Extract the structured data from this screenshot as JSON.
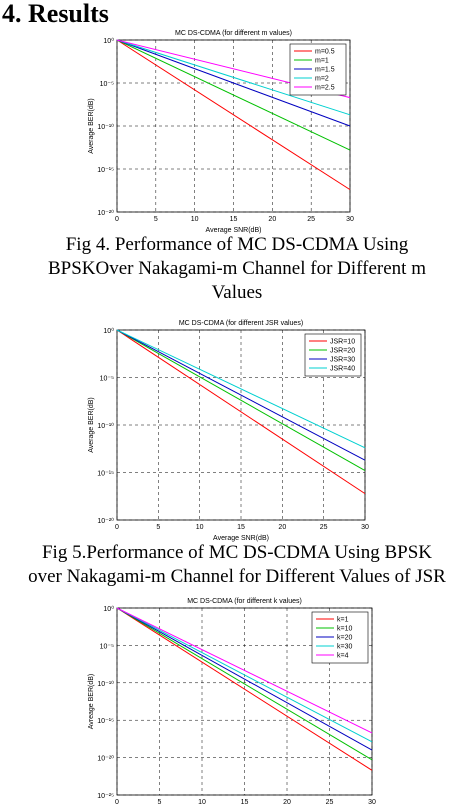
{
  "heading": "4.  Results",
  "captions": [
    [
      "Fig 4.  Performance of MC DS-CDMA Using",
      "BPSKOver Nakagami-m Channel for Different m",
      "Values"
    ],
    [
      "Fig 5.Performance of MC DS-CDMA Using BPSK",
      "over Nakagami-m Channel for Different Values of JSR"
    ]
  ],
  "chart_data": [
    {
      "type": "line",
      "title": "MC DS-CDMA (for different m values)",
      "xlabel": "Average SNR(dB)",
      "ylabel": "Average BER(dB)",
      "log_y": true,
      "grid": true,
      "legend": "upper right",
      "x": [
        0,
        30
      ],
      "xlim": [
        0,
        30
      ],
      "xticks": [
        0,
        5,
        10,
        15,
        20,
        25,
        30
      ],
      "ylim": [
        1e-20,
        1
      ],
      "yticks": [
        {
          "value": 1e-20,
          "label": "10⁻²⁰"
        },
        {
          "value": 1e-15,
          "label": "10⁻¹⁵"
        },
        {
          "value": 1e-10,
          "label": "10⁻¹⁰"
        },
        {
          "value": 1e-05,
          "label": "10⁻⁵"
        },
        {
          "value": 1,
          "label": "10⁰"
        }
      ],
      "series": [
        {
          "name": "m=0.5",
          "color": "#ff0000",
          "values": [
            1,
            4e-18
          ]
        },
        {
          "name": "m=1",
          "color": "#00c000",
          "values": [
            1,
            1.6e-13
          ]
        },
        {
          "name": "m=1.5",
          "color": "#0000c0",
          "values": [
            1,
            1e-10
          ]
        },
        {
          "name": "m=2",
          "color": "#00d0d0",
          "values": [
            1,
            2e-09
          ]
        },
        {
          "name": "m=2.5",
          "color": "#ff00ff",
          "values": [
            1,
            2e-07
          ]
        }
      ]
    },
    {
      "type": "line",
      "title": "MC DS-CDMA (for different JSR values)",
      "xlabel": "Average SNR(dB)",
      "ylabel": "Average BER(dB)",
      "log_y": true,
      "grid": true,
      "legend": "upper right",
      "x": [
        0,
        30
      ],
      "xlim": [
        0,
        30
      ],
      "xticks": [
        0,
        5,
        10,
        15,
        20,
        25,
        30
      ],
      "ylim": [
        1e-20,
        1
      ],
      "yticks": [
        {
          "value": 1e-20,
          "label": "10⁻²⁰"
        },
        {
          "value": 1e-15,
          "label": "10⁻¹⁵"
        },
        {
          "value": 1e-10,
          "label": "10⁻¹⁰"
        },
        {
          "value": 1e-05,
          "label": "10⁻⁵"
        },
        {
          "value": 1,
          "label": "10⁰"
        }
      ],
      "series": [
        {
          "name": "JSR=10",
          "color": "#ff0000",
          "values": [
            1,
            6e-18
          ]
        },
        {
          "name": "JSR=20",
          "color": "#00c000",
          "values": [
            1,
            1.6e-15
          ]
        },
        {
          "name": "JSR=30",
          "color": "#0000c0",
          "values": [
            1,
            2e-14
          ]
        },
        {
          "name": "JSR=40",
          "color": "#00d0d0",
          "values": [
            1,
            4e-13
          ]
        }
      ]
    },
    {
      "type": "line",
      "title": "MC DS-CDMA (for different k values)",
      "xlabel": "Average SNR(dB)",
      "ylabel": "Avreage BER(dB)",
      "log_y": true,
      "grid": true,
      "legend": "upper right",
      "x": [
        0,
        30
      ],
      "xlim": [
        0,
        30
      ],
      "xticks": [
        0,
        5,
        10,
        15,
        20,
        25,
        30
      ],
      "ylim": [
        1e-25,
        1
      ],
      "yticks": [
        {
          "value": 1e-25,
          "label": "10⁻²⁵"
        },
        {
          "value": 1e-20,
          "label": "10⁻²⁰"
        },
        {
          "value": 1e-15,
          "label": "10⁻¹⁵"
        },
        {
          "value": 1e-10,
          "label": "10⁻¹⁰"
        },
        {
          "value": 1e-05,
          "label": "10⁻⁵"
        },
        {
          "value": 1,
          "label": "10⁰"
        }
      ],
      "series": [
        {
          "name": "k=1",
          "color": "#ff0000",
          "values": [
            1,
            2e-22
          ]
        },
        {
          "name": "k=10",
          "color": "#00c000",
          "values": [
            1,
            5e-21
          ]
        },
        {
          "name": "k=20",
          "color": "#0000c0",
          "values": [
            1,
            1e-19
          ]
        },
        {
          "name": "k=30",
          "color": "#00d0d0",
          "values": [
            1,
            1.3e-18
          ]
        },
        {
          "name": "k=4",
          "color": "#ff00ff",
          "values": [
            1,
            2e-17
          ]
        }
      ]
    }
  ]
}
